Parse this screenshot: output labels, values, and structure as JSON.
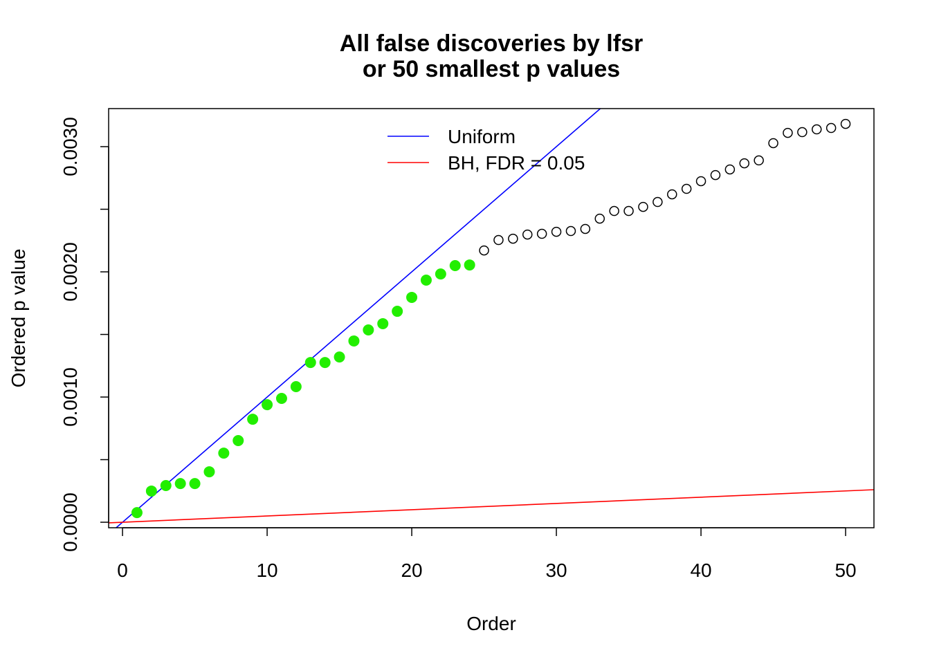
{
  "chart_data": {
    "type": "scatter",
    "title": [
      "All false discoveries by lfsr",
      "or 50 smallest p values"
    ],
    "xlabel": "Order",
    "ylabel": "Ordered p value",
    "xlim": [
      -0.96,
      51.96
    ],
    "ylim": [
      -4.4e-05,
      0.003304
    ],
    "xticks": [
      0,
      10,
      20,
      30,
      40,
      50
    ],
    "xtick_labels": [
      "0",
      "10",
      "20",
      "30",
      "40",
      "50"
    ],
    "yticks": [
      0,
      0.0005,
      0.001,
      0.0015,
      0.002,
      0.0025,
      0.003
    ],
    "ytick_labels": [
      "0.0000",
      "",
      "0.0010",
      "",
      "0.0020",
      "",
      "0.0030"
    ],
    "grid": false,
    "legend_placement": "top-center",
    "x": [
      1,
      2,
      3,
      4,
      5,
      6,
      7,
      8,
      9,
      10,
      11,
      12,
      13,
      14,
      15,
      16,
      17,
      18,
      19,
      20,
      21,
      22,
      23,
      24,
      25,
      26,
      27,
      28,
      29,
      30,
      31,
      32,
      33,
      34,
      35,
      36,
      37,
      38,
      39,
      40,
      41,
      42,
      43,
      44,
      45,
      46,
      47,
      48,
      49,
      50
    ],
    "y": [
      7.7e-05,
      0.000249,
      0.000293,
      0.000309,
      0.000309,
      0.000403,
      0.000552,
      0.000652,
      0.000823,
      0.000939,
      0.000989,
      0.001083,
      0.001276,
      0.001276,
      0.00132,
      0.001448,
      0.001536,
      0.001586,
      0.001685,
      0.001796,
      0.001934,
      0.001983,
      0.00205,
      0.002055,
      0.002171,
      0.002254,
      0.002265,
      0.002298,
      0.002304,
      0.00232,
      0.002326,
      0.002343,
      0.002425,
      0.002486,
      0.002486,
      0.002519,
      0.002558,
      0.002619,
      0.002663,
      0.002724,
      0.002773,
      0.002818,
      0.002867,
      0.00289,
      0.003028,
      0.00311,
      0.003116,
      0.003138,
      0.003149,
      0.003182
    ],
    "discovery_count": 24,
    "discovery_color": "#22ee00",
    "other_point_style": "open-circle",
    "lines": [
      {
        "name": "Uniform",
        "slope": 0.0001,
        "intercept": 0,
        "color": "#0000ff"
      },
      {
        "name": "BH, FDR = 0.05",
        "slope": 5e-06,
        "intercept": 0,
        "color": "#ff0000"
      }
    ]
  }
}
